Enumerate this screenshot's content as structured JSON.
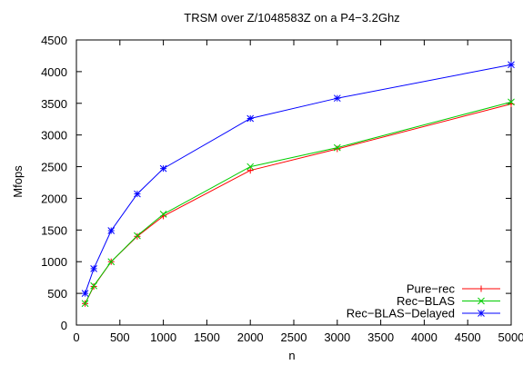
{
  "chart_data": {
    "type": "line",
    "title": "TRSM over Z/1048583Z on a P4−3.2Ghz",
    "xlabel": "n",
    "ylabel": "Mfops",
    "xlim": [
      0,
      5000
    ],
    "ylim": [
      0,
      4500
    ],
    "xticks": [
      0,
      500,
      1000,
      1500,
      2000,
      2500,
      3000,
      3500,
      4000,
      4500,
      5000
    ],
    "yticks": [
      0,
      500,
      1000,
      1500,
      2000,
      2500,
      3000,
      3500,
      4000,
      4500
    ],
    "grid": false,
    "legend_position": "bottom-right",
    "x": [
      100,
      200,
      400,
      700,
      1000,
      2000,
      3000,
      5000
    ],
    "series": [
      {
        "name": "Pure−rec",
        "color": "#ff0000",
        "marker": "plus",
        "values": [
          340,
          610,
          1000,
          1400,
          1720,
          2440,
          2780,
          3490
        ]
      },
      {
        "name": "Rec−BLAS",
        "color": "#00cc00",
        "marker": "cross",
        "values": [
          340,
          620,
          1000,
          1410,
          1750,
          2500,
          2800,
          3520
        ]
      },
      {
        "name": "Rec−BLAS−Delayed",
        "color": "#0000ff",
        "marker": "star",
        "values": [
          500,
          890,
          1490,
          2070,
          2470,
          3260,
          3580,
          4110
        ]
      }
    ]
  }
}
